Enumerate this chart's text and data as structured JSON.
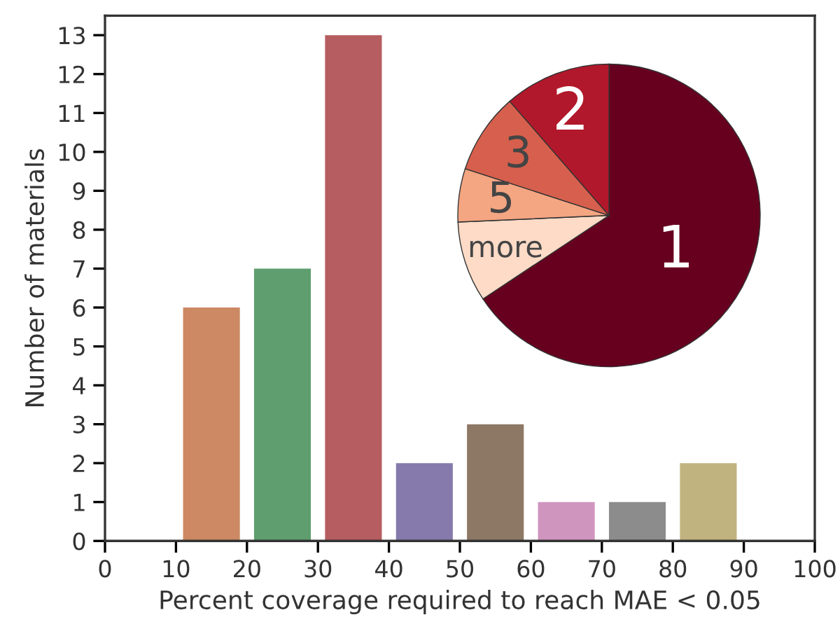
{
  "chart_data": [
    {
      "type": "histogram",
      "xlabel": "Percent coverage required to reach MAE < 0.05",
      "ylabel": "Number of materials",
      "bins": [
        10,
        20,
        30,
        40,
        50,
        60,
        70,
        80,
        90
      ],
      "values": [
        6,
        7,
        13,
        2,
        3,
        1,
        1,
        2
      ],
      "colors": [
        "#cc8963",
        "#5f9e6e",
        "#b55d60",
        "#857aab",
        "#8d7866",
        "#d095bf",
        "#8c8c8c",
        "#c1b37f"
      ],
      "xlim": [
        0,
        100
      ],
      "ylim": [
        0,
        13.5
      ],
      "xticks": [
        0,
        10,
        20,
        30,
        40,
        50,
        60,
        70,
        80,
        90,
        100
      ],
      "yticks": [
        0,
        1,
        2,
        3,
        4,
        5,
        6,
        7,
        8,
        9,
        10,
        11,
        12,
        13
      ],
      "grid": false
    },
    {
      "type": "pie",
      "categories": [
        "1",
        "more",
        "5",
        "3",
        "2"
      ],
      "values": [
        65.7,
        8.6,
        5.7,
        8.6,
        11.4
      ],
      "colors": [
        "#67001f",
        "#fddbc7",
        "#f4a582",
        "#d6604d",
        "#b2182b"
      ]
    }
  ]
}
